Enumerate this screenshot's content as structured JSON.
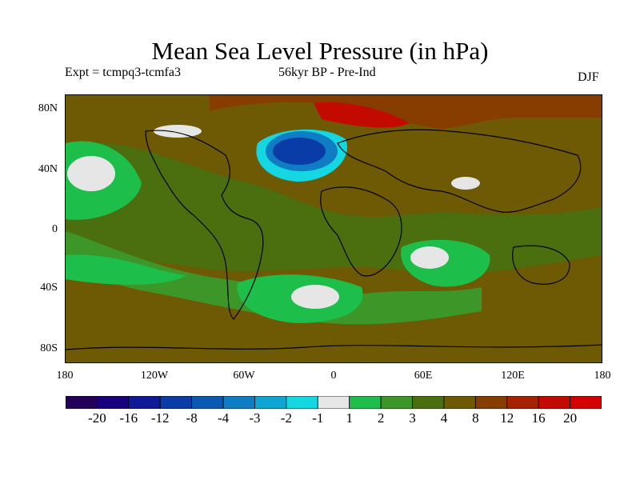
{
  "header": {
    "title": "Mean Sea Level Pressure (in hPa)",
    "expt": "Expt = tcmpq3-tcmfa3",
    "period": "56kyr BP - Pre-Ind",
    "season": "DJF"
  },
  "axes": {
    "y_ticks": [
      "80N",
      "40N",
      "0",
      "40S",
      "80S"
    ],
    "x_ticks": [
      "180",
      "120W",
      "60W",
      "0",
      "60E",
      "120E",
      "180"
    ]
  },
  "colorbar": {
    "labels": [
      "-20",
      "-16",
      "-12",
      "-8",
      "-4",
      "-3",
      "-2",
      "-1",
      "1",
      "2",
      "3",
      "4",
      "8",
      "12",
      "16",
      "20"
    ],
    "colors": [
      "#23005a",
      "#19007d",
      "#0f1a96",
      "#0a3ca8",
      "#0a5ab4",
      "#0f7dc3",
      "#0fa5d2",
      "#14d7e1",
      "#e6e6e6",
      "#1ebe4b",
      "#3c9628",
      "#4b6e0f",
      "#6e5a05",
      "#873c00",
      "#a52300",
      "#c30a00",
      "#d20000"
    ]
  },
  "map": {
    "background": "#6e5a05"
  }
}
